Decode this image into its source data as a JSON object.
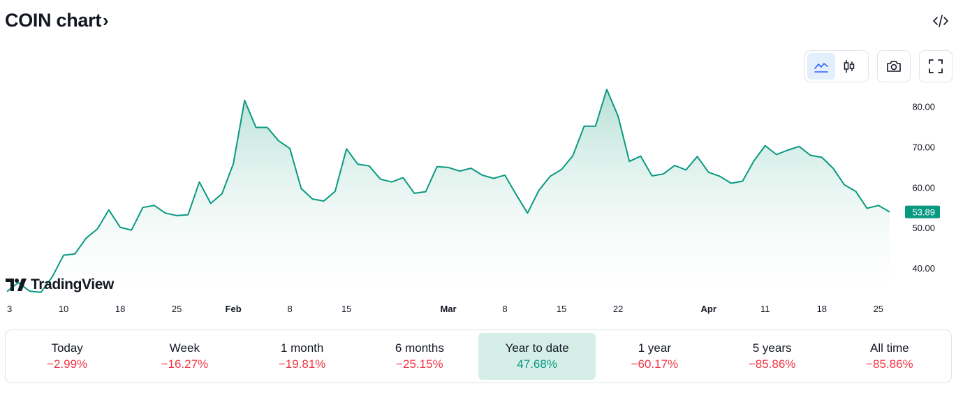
{
  "header": {
    "title": "COIN chart",
    "chevron": "›"
  },
  "toolbar": {
    "buttons": [
      {
        "icon": "area-chart-icon",
        "active": true
      },
      {
        "icon": "candlestick-icon",
        "active": false
      },
      {
        "icon": "camera-icon",
        "active": false
      },
      {
        "icon": "fullscreen-icon",
        "active": false
      }
    ],
    "embed_icon": "code-embed-icon"
  },
  "brand": {
    "logo_text": "TradingView"
  },
  "colors": {
    "line": "#089981",
    "area_top": "#b3dfd3",
    "negative": "#f23645",
    "positive": "#089981",
    "price_label_bg": "#089981"
  },
  "chart_data": {
    "type": "area",
    "y_axis": {
      "ticks": [
        40,
        50,
        60,
        70,
        80
      ],
      "tick_labels": [
        "40.00",
        "50.00",
        "60.00",
        "70.00",
        "80.00"
      ],
      "range": [
        33.8,
        85.6
      ]
    },
    "x_axis": {
      "ticks": [
        {
          "label": "3",
          "pos": 0,
          "bold": false
        },
        {
          "label": "10",
          "pos": 5,
          "bold": false
        },
        {
          "label": "18",
          "pos": 10,
          "bold": false
        },
        {
          "label": "25",
          "pos": 15,
          "bold": false
        },
        {
          "label": "Feb",
          "pos": 20,
          "bold": true
        },
        {
          "label": "8",
          "pos": 25,
          "bold": false
        },
        {
          "label": "15",
          "pos": 30,
          "bold": false
        },
        {
          "label": "Mar",
          "pos": 39,
          "bold": true
        },
        {
          "label": "8",
          "pos": 44,
          "bold": false
        },
        {
          "label": "15",
          "pos": 49,
          "bold": false
        },
        {
          "label": "22",
          "pos": 54,
          "bold": false
        },
        {
          "label": "Apr",
          "pos": 62,
          "bold": true
        },
        {
          "label": "11",
          "pos": 67,
          "bold": false
        },
        {
          "label": "18",
          "pos": 72,
          "bold": false
        },
        {
          "label": "25",
          "pos": 77,
          "bold": false
        }
      ]
    },
    "values": [
      34.2,
      36.4,
      34.3,
      34.0,
      37.8,
      43.2,
      43.5,
      47.4,
      49.7,
      54.4,
      50.1,
      49.4,
      55.0,
      55.5,
      53.6,
      53.0,
      53.2,
      61.3,
      56.0,
      58.4,
      65.8,
      81.5,
      74.8,
      74.8,
      71.5,
      69.6,
      59.7,
      57.1,
      56.6,
      59.0,
      69.5,
      65.7,
      65.3,
      62.0,
      61.3,
      62.4,
      58.5,
      58.9,
      65.1,
      64.9,
      64.0,
      64.7,
      63.0,
      62.2,
      63.0,
      58.2,
      53.6,
      59.2,
      62.7,
      64.4,
      67.8,
      75.1,
      75.1,
      84.2,
      77.6,
      66.4,
      67.7,
      62.8,
      63.3,
      65.4,
      64.3,
      67.6,
      63.7,
      62.7,
      61.0,
      61.5,
      66.5,
      70.3,
      68.1,
      69.2,
      70.1,
      67.9,
      67.4,
      64.7,
      60.6,
      59.0,
      54.8,
      55.5,
      53.89
    ],
    "last_price_label": "53.89",
    "grid": false
  },
  "periods": [
    {
      "label": "Today",
      "value": "−2.99%",
      "sign": "neg",
      "active": false
    },
    {
      "label": "Week",
      "value": "−16.27%",
      "sign": "neg",
      "active": false
    },
    {
      "label": "1 month",
      "value": "−19.81%",
      "sign": "neg",
      "active": false
    },
    {
      "label": "6 months",
      "value": "−25.15%",
      "sign": "neg",
      "active": false
    },
    {
      "label": "Year to date",
      "value": "47.68%",
      "sign": "pos",
      "active": true
    },
    {
      "label": "1 year",
      "value": "−60.17%",
      "sign": "neg",
      "active": false
    },
    {
      "label": "5 years",
      "value": "−85.86%",
      "sign": "neg",
      "active": false
    },
    {
      "label": "All time",
      "value": "−85.86%",
      "sign": "neg",
      "active": false
    }
  ]
}
